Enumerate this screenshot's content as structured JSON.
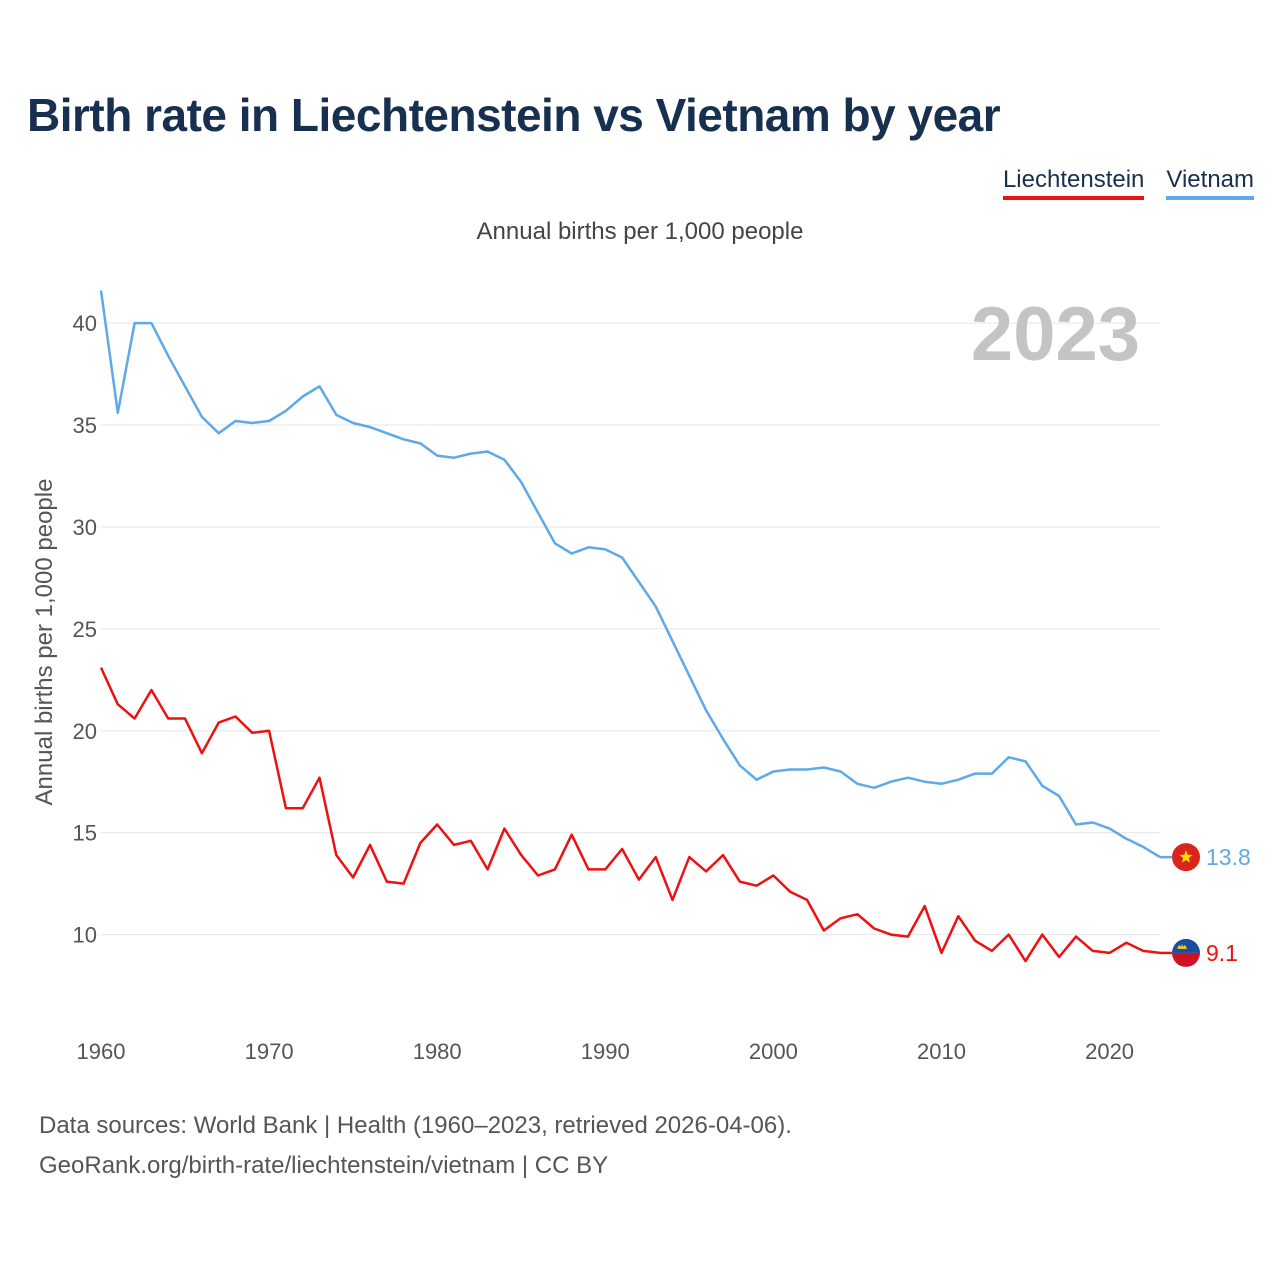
{
  "title": "Birth rate in Liechtenstein vs Vietnam by year",
  "legend": {
    "liechtenstein": "Liechtenstein",
    "vietnam": "Vietnam"
  },
  "subtitle": "Annual births per 1,000 people",
  "footer": {
    "line1": "Data sources: World Bank | Health (1960–2023, retrieved 2026-04-06).",
    "line2": "GeoRank.org/birth-rate/liechtenstein/vietnam | CC BY"
  },
  "colors": {
    "liechtenstein": "#ee1111",
    "vietnam": "#5ea9e8",
    "year": "#c4c4c4",
    "grid": "#e6e6e6"
  },
  "chart_data": {
    "type": "line",
    "title": "Birth rate in Liechtenstein vs Vietnam by year",
    "ylabel": "Annual births per 1,000 people",
    "xlabel": "",
    "year_label": "2023",
    "xlim": [
      1960,
      2023
    ],
    "ylim": [
      6.3,
      43
    ],
    "x_ticks": [
      1960,
      1970,
      1980,
      1990,
      2000,
      2010,
      2020
    ],
    "y_ticks": [
      10,
      15,
      20,
      25,
      30,
      35,
      40
    ],
    "x": [
      1960,
      1961,
      1962,
      1963,
      1964,
      1965,
      1966,
      1967,
      1968,
      1969,
      1970,
      1971,
      1972,
      1973,
      1974,
      1975,
      1976,
      1977,
      1978,
      1979,
      1980,
      1981,
      1982,
      1983,
      1984,
      1985,
      1986,
      1987,
      1988,
      1989,
      1990,
      1991,
      1992,
      1993,
      1994,
      1995,
      1996,
      1997,
      1998,
      1999,
      2000,
      2001,
      2002,
      2003,
      2004,
      2005,
      2006,
      2007,
      2008,
      2009,
      2010,
      2011,
      2012,
      2013,
      2014,
      2015,
      2016,
      2017,
      2018,
      2019,
      2020,
      2021,
      2022,
      2023
    ],
    "series": [
      {
        "name": "Vietnam",
        "end_label": "13.8",
        "values": [
          41.6,
          35.6,
          40.0,
          40.0,
          38.4,
          36.9,
          35.4,
          34.6,
          35.2,
          35.1,
          35.2,
          35.7,
          36.4,
          36.9,
          35.5,
          35.1,
          34.9,
          34.6,
          34.3,
          34.1,
          33.5,
          33.4,
          33.6,
          33.7,
          33.3,
          32.2,
          30.7,
          29.2,
          28.7,
          29.0,
          28.9,
          28.5,
          27.3,
          26.1,
          24.4,
          22.7,
          21.0,
          19.6,
          18.3,
          17.6,
          18.0,
          18.1,
          18.1,
          18.2,
          18.0,
          17.4,
          17.2,
          17.5,
          17.7,
          17.5,
          17.4,
          17.6,
          17.9,
          17.9,
          18.7,
          18.5,
          17.3,
          16.8,
          15.4,
          15.5,
          15.2,
          14.7,
          14.3,
          13.8
        ]
      },
      {
        "name": "Liechtenstein",
        "end_label": "9.1",
        "values": [
          23.1,
          21.3,
          20.6,
          22.0,
          20.6,
          20.6,
          18.9,
          20.4,
          20.7,
          19.9,
          20.0,
          16.2,
          16.2,
          17.7,
          13.9,
          12.8,
          14.4,
          12.6,
          12.5,
          14.5,
          15.4,
          14.4,
          14.6,
          13.2,
          15.2,
          13.9,
          12.9,
          13.2,
          14.9,
          13.2,
          13.2,
          14.2,
          12.7,
          13.8,
          11.7,
          13.8,
          13.1,
          13.9,
          12.6,
          12.4,
          12.9,
          12.1,
          11.7,
          10.2,
          10.8,
          11.0,
          10.3,
          10.0,
          9.9,
          11.4,
          9.1,
          10.9,
          9.7,
          9.2,
          10.0,
          8.7,
          10.0,
          8.9,
          9.9,
          9.2,
          9.1,
          9.6,
          9.2,
          9.1
        ]
      }
    ]
  }
}
